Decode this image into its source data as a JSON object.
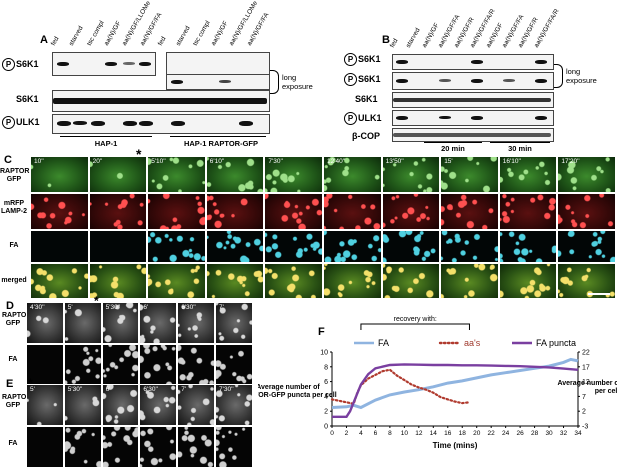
{
  "figure": {
    "panel_A": {
      "letter": "A",
      "lanes": [
        "fed",
        "starved",
        "tsc compl",
        "aa(N)/GF",
        "aa(N)/GF/LLOMe",
        "aa(N)/GF/FA",
        "fed",
        "starved",
        "tsc compl",
        "aa(N)/GF",
        "aa(N)/GF/LLOMe",
        "aa(N)/GF/FA"
      ],
      "rows": [
        "S6K1",
        "S6K1",
        "ULK1"
      ],
      "phospho_marker": "P",
      "long_exposure": "long exposure",
      "groups": [
        "HAP-1",
        "HAP-1 RAPTOR-GFP"
      ]
    },
    "panel_B": {
      "letter": "B",
      "lanes": [
        "fed",
        "starved",
        "aa(N)/GF",
        "aa(N)/GF/FA",
        "aa(N)/GF/R",
        "aa(N)/GF/FA/R",
        "aa(N)/GF",
        "aa(N)/GF/FA",
        "aa(N)/GF/R",
        "aa(N)/GF/FA/R"
      ],
      "rows": [
        "S6K1",
        "S6K1",
        "S6K1",
        "ULK1",
        "β-COP"
      ],
      "phospho_marker": "P",
      "long_exposure": "long exposure",
      "groups": [
        "20 min",
        "30 min"
      ]
    },
    "panel_C": {
      "letter": "C",
      "times": [
        "10''",
        "20''",
        "5'10''",
        "6'10''",
        "7'30''",
        "12'40''",
        "13'50''",
        "15'",
        "16'10''",
        "17'20''"
      ],
      "rows": [
        "RAPTOR GFP",
        "mRFP LAMP-2",
        "FA",
        "merged"
      ],
      "star": "*"
    },
    "panel_D": {
      "letter": "D",
      "times": [
        "4'30''",
        "5'",
        "5'30''",
        "6'",
        "6'30''",
        "7'"
      ],
      "rows": [
        "RAPTOR GFP",
        "FA"
      ],
      "star": "*"
    },
    "panel_E": {
      "letter": "E",
      "times": [
        "5'",
        "5'30''",
        "6'",
        "6'30''",
        "7'",
        "7'30''"
      ],
      "rows": [
        "RAPTOR GFP",
        "FA"
      ],
      "star": "*"
    },
    "panel_F": {
      "letter": "F",
      "recovery_label": "recovery with:",
      "legend": [
        "FA",
        "aa's",
        "FA puncta"
      ]
    }
  },
  "chart_data": {
    "type": "line",
    "title": "",
    "xlabel": "Time (mins)",
    "ylabel": "Average number of RAPTOR-GFP puncta per cell",
    "y2label": "Average number of FA puncta per cell",
    "xlim": [
      0,
      34
    ],
    "ylim": [
      0,
      10
    ],
    "y2lim": [
      -3,
      22
    ],
    "xticks": [
      0,
      2,
      4,
      6,
      8,
      10,
      12,
      14,
      16,
      18,
      20,
      22,
      24,
      26,
      28,
      30,
      32,
      34
    ],
    "yticks": [
      0,
      2,
      4,
      6,
      8,
      10
    ],
    "y2ticks": [
      -3,
      2,
      7,
      12,
      17,
      22
    ],
    "recovery_bracket_x": [
      4,
      19
    ],
    "colors": {
      "FA": "#8fb4e0",
      "aa's": "#b03a2e",
      "FA puncta": "#7a3fa0"
    },
    "series": [
      {
        "name": "FA",
        "axis": "left",
        "style": "solid-thick",
        "x": [
          0,
          2,
          3,
          4,
          6,
          8,
          10,
          12,
          14,
          16,
          18,
          20,
          22,
          24,
          26,
          28,
          30,
          32,
          33,
          34
        ],
        "y": [
          2.5,
          2.6,
          2.8,
          2.5,
          3.5,
          4.2,
          4.6,
          4.9,
          5.3,
          5.8,
          6.1,
          6.5,
          6.9,
          7.2,
          7.5,
          7.8,
          8.1,
          8.6,
          9.0,
          8.8
        ]
      },
      {
        "name": "aa's",
        "axis": "left",
        "style": "dotted",
        "x": [
          0,
          1,
          2,
          3,
          3.5,
          4,
          5,
          6,
          7,
          8,
          9,
          10,
          11,
          12,
          13,
          14,
          15,
          16,
          17,
          18,
          19
        ],
        "y": [
          3.6,
          3.4,
          3.2,
          3.0,
          4.5,
          5.5,
          6.4,
          6.9,
          7.4,
          7.6,
          6.8,
          6.2,
          5.6,
          5.2,
          4.9,
          4.5,
          3.9,
          3.6,
          3.3,
          3.1,
          3.2
        ]
      },
      {
        "name": "FA puncta",
        "axis": "right",
        "style": "solid",
        "x": [
          0,
          2,
          2.5,
          3,
          4,
          5,
          6,
          8,
          10,
          12,
          14,
          16,
          18,
          20,
          22,
          24,
          26,
          28,
          30,
          32,
          34
        ],
        "y": [
          0.1,
          0.1,
          2.0,
          5.0,
          11.0,
          14.5,
          16.5,
          17.6,
          17.8,
          17.7,
          17.6,
          17.6,
          17.5,
          17.5,
          17.4,
          17.3,
          17.2,
          17.0,
          16.8,
          16.4,
          16.0
        ]
      }
    ]
  }
}
